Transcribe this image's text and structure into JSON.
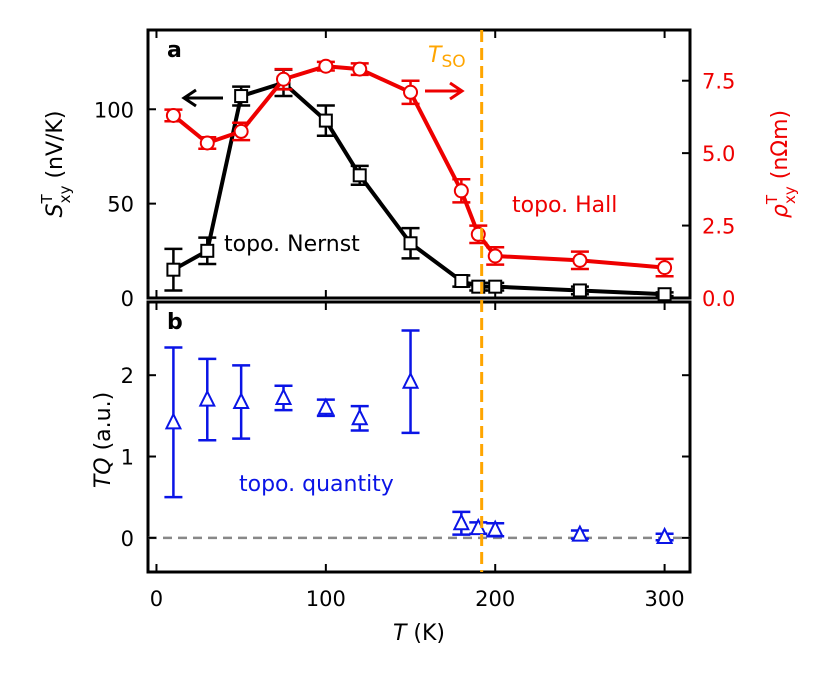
{
  "chart_data": [
    {
      "panel": "a",
      "type": "line",
      "xlabel": {
        "italic": "T",
        "rest": " (K)"
      },
      "xlim": [
        -5,
        315
      ],
      "xticks": [
        0,
        100,
        200,
        300
      ],
      "left_axis": {
        "label": {
          "base": "S",
          "sup": "T",
          "sub": "xy",
          "unit": " (nV/K)"
        },
        "ylim": [
          0,
          142
        ],
        "ticks": [
          0,
          50,
          100
        ],
        "color": "#000000"
      },
      "right_axis": {
        "label": {
          "base": "ρ",
          "sup": "T",
          "sub": "xy",
          "unit": " (nΩm)"
        },
        "ylim": [
          0,
          9.25
        ],
        "ticks": [
          "0.0",
          "2.5",
          "5.0",
          "7.5"
        ],
        "color": "#ee0000"
      },
      "series": [
        {
          "axis": "left",
          "marker": "square",
          "color": "#000000",
          "x": [
            10,
            30,
            50,
            75,
            100,
            120,
            150,
            180,
            190,
            200,
            250,
            300
          ],
          "y": [
            15,
            25,
            107,
            114,
            94,
            65,
            29,
            9,
            6,
            6,
            4,
            2
          ],
          "err": [
            11,
            7,
            5,
            7,
            8,
            5,
            8,
            3,
            2,
            2,
            2,
            1
          ]
        },
        {
          "axis": "right",
          "marker": "circle",
          "color": "#ee0000",
          "x": [
            10,
            30,
            50,
            75,
            100,
            120,
            150,
            180,
            190,
            200,
            250,
            300
          ],
          "y": [
            6.3,
            5.35,
            5.75,
            7.55,
            8.0,
            7.9,
            7.1,
            3.7,
            2.2,
            1.45,
            1.3,
            1.05
          ],
          "err": [
            0.2,
            0.2,
            0.3,
            0.35,
            0.15,
            0.2,
            0.4,
            0.4,
            0.3,
            0.3,
            0.3,
            0.3
          ]
        }
      ],
      "annotations": {
        "panel_letter": "a",
        "nernst": "topo. Nernst",
        "hall": "topo. Hall",
        "tso_main": "T",
        "tso_sub": "SO"
      }
    },
    {
      "panel": "b",
      "type": "scatter",
      "xlabel": {
        "italic": "T",
        "rest": " (K)"
      },
      "xlim": [
        -5,
        315
      ],
      "xticks": [
        0,
        100,
        200,
        300
      ],
      "left_axis": {
        "label": {
          "italic": "TQ",
          "rest": " (a.u.)"
        },
        "ylim": [
          -0.42,
          2.9
        ],
        "ticks": [
          0,
          1,
          2
        ],
        "color": "#000000"
      },
      "series": [
        {
          "axis": "left",
          "marker": "triangle",
          "color": "#0a14e6",
          "x": [
            10,
            30,
            50,
            75,
            100,
            120,
            150,
            180,
            190,
            200,
            250,
            300
          ],
          "y": [
            1.42,
            1.7,
            1.67,
            1.72,
            1.6,
            1.47,
            1.92,
            0.18,
            0.12,
            0.1,
            0.04,
            0.01
          ],
          "err": [
            0.92,
            0.5,
            0.45,
            0.15,
            0.1,
            0.15,
            0.63,
            0.14,
            0.07,
            0.08,
            0.05,
            0.04
          ]
        }
      ],
      "zero_line": 0,
      "annotations": {
        "panel_letter": "b",
        "quantity": "topo. quantity"
      }
    }
  ],
  "tso_line": {
    "x": 192,
    "color": "#ffa500"
  },
  "colors": {
    "black": "#000000",
    "red": "#ee0000",
    "blue": "#0a14e6",
    "orange": "#ffa500",
    "zero_line": "#888888"
  }
}
